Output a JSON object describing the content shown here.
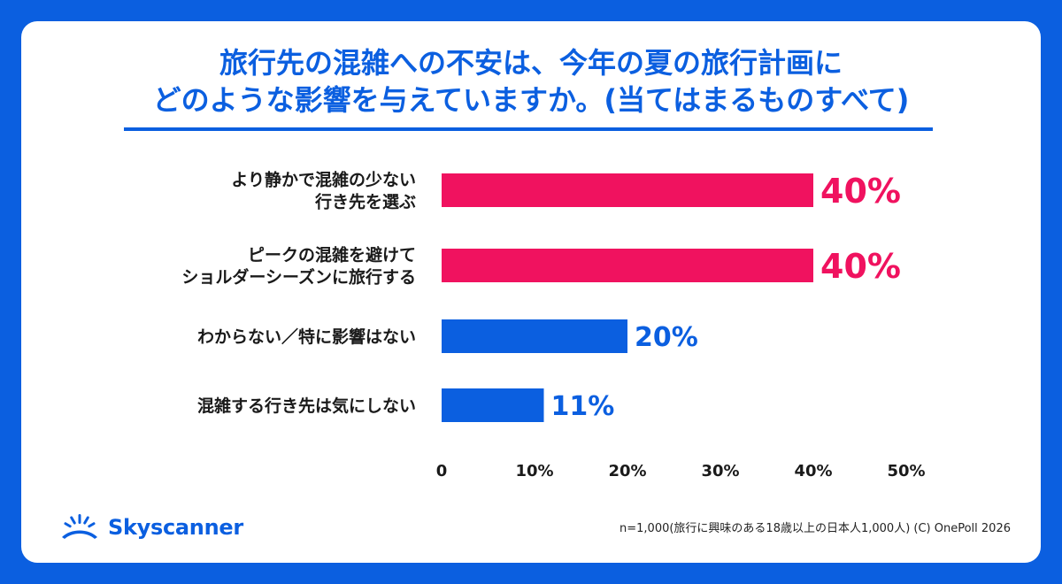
{
  "title_line1": "旅行先の混雑への不安は、今年の夏の旅行計画に",
  "title_line2": "どのような影響を与えていますか。(当てはまるものすべて)",
  "footnote": "n=1,000(旅行に興味のある18歳以上の日本人1,000人) (C) OnePoll 2026",
  "brand": {
    "name": "Skyscanner",
    "icon": "skyscanner-sunrise-icon"
  },
  "colors": {
    "background": "#0b5fe0",
    "highlight": "#f0125f",
    "primary": "#0b5fe0"
  },
  "chart_data": {
    "type": "bar",
    "orientation": "horizontal",
    "categories": [
      [
        "より静かで混雑の少ない",
        "行き先を選ぶ"
      ],
      [
        "ピークの混雑を避けて",
        "ショルダーシーズンに旅行する"
      ],
      [
        "わからない／特に影響はない"
      ],
      [
        "混雑する行き先は気にしない"
      ]
    ],
    "values": [
      40,
      40,
      20,
      11
    ],
    "value_labels": [
      "40%",
      "40%",
      "20%",
      "11%"
    ],
    "bar_colors": [
      "#f0125f",
      "#f0125f",
      "#0b5fe0",
      "#0b5fe0"
    ],
    "xlim": [
      0,
      50
    ],
    "xticks": [
      0,
      10,
      20,
      30,
      40,
      50
    ],
    "xtick_labels": [
      "0",
      "10%",
      "20%",
      "30%",
      "40%",
      "50%"
    ],
    "grid": false,
    "legend": "none"
  }
}
